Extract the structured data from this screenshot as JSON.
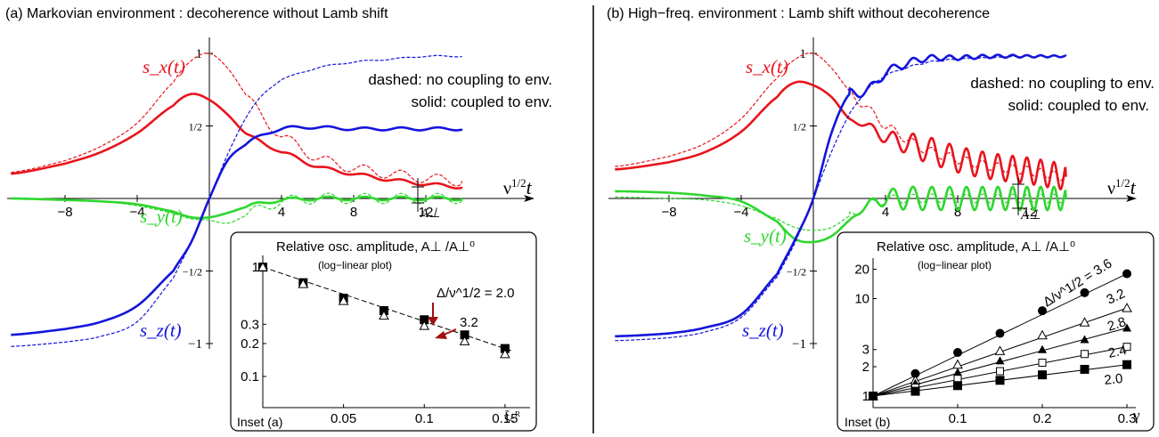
{
  "colors": {
    "sx": "#e8141c",
    "sy": "#2fd62f",
    "sz": "#1414dc",
    "arrow": "#a01010",
    "axis": "#000000"
  },
  "chart_data": [
    {
      "id": "a",
      "type": "line",
      "title": "(a) Markovian environment : decoherence without Lamb shift",
      "xlabel": "ν^1/2 t",
      "xticks": [
        -8,
        -4,
        4,
        8,
        12
      ],
      "yticks": [
        "1",
        "1/2",
        "−1/2",
        "−1"
      ],
      "xlim": [
        -11,
        14.5
      ],
      "ylim": [
        -1.1,
        1.05
      ],
      "legend_dashed": "dashed: no coupling to env.",
      "legend_solid": "solid: coupled to env.",
      "amplitude_label": "A⊥",
      "series": [
        {
          "name": "s_x(t)",
          "color": "#e8141c",
          "style": "solid",
          "x": [
            -11,
            -8,
            -6,
            -4,
            -2,
            -1,
            0,
            1,
            2,
            3,
            4,
            6,
            8,
            10,
            12,
            14
          ],
          "y": [
            0.17,
            0.24,
            0.32,
            0.45,
            0.64,
            0.72,
            0.68,
            0.58,
            0.45,
            0.38,
            0.32,
            0.22,
            0.17,
            0.13,
            0.1,
            0.08
          ]
        },
        {
          "name": "s_x(t)",
          "color": "#e8141c",
          "style": "dashed",
          "x": [
            -11,
            -8,
            -6,
            -4,
            -2,
            -1,
            0,
            1,
            2,
            3,
            4,
            6,
            8,
            10,
            12,
            14
          ],
          "y": [
            0.18,
            0.26,
            0.36,
            0.52,
            0.8,
            0.95,
            1.0,
            0.9,
            0.72,
            0.55,
            0.43,
            0.28,
            0.21,
            0.17,
            0.14,
            0.12
          ]
        },
        {
          "name": "s_y(t)",
          "color": "#2fd62f",
          "style": "solid",
          "x": [
            -11,
            -8,
            -6,
            -4,
            -2,
            -1,
            0,
            1,
            2,
            3,
            4,
            6,
            8,
            10,
            12,
            14
          ],
          "y": [
            0,
            -0.01,
            -0.02,
            -0.04,
            -0.09,
            -0.13,
            -0.13,
            -0.1,
            -0.06,
            -0.03,
            -0.01,
            0,
            0,
            0,
            0,
            0
          ]
        },
        {
          "name": "s_y(t)",
          "color": "#2fd62f",
          "style": "dashed",
          "x": [
            -11,
            -8,
            -6,
            -4,
            -2,
            -1,
            0,
            1,
            2,
            3,
            4,
            6,
            8,
            10,
            12,
            14
          ],
          "y": [
            0,
            -0.01,
            -0.02,
            -0.05,
            -0.1,
            -0.14,
            -0.15,
            -0.17,
            -0.12,
            -0.06,
            -0.02,
            0,
            0,
            0,
            0,
            0
          ]
        },
        {
          "name": "s_z(t)",
          "color": "#1414dc",
          "style": "solid",
          "x": [
            -11,
            -8,
            -6,
            -4,
            -2,
            -1,
            0,
            1,
            2,
            3,
            4,
            5,
            6,
            8,
            10,
            12,
            14
          ],
          "y": [
            -0.94,
            -0.9,
            -0.85,
            -0.74,
            -0.5,
            -0.3,
            0,
            0.26,
            0.37,
            0.44,
            0.48,
            0.49,
            0.49,
            0.48,
            0.48,
            0.48,
            0.48
          ]
        },
        {
          "name": "s_z(t)",
          "color": "#1414dc",
          "style": "dashed",
          "x": [
            -11,
            -8,
            -6,
            -4,
            -2,
            -1,
            0,
            1,
            2,
            3,
            4,
            6,
            8,
            10,
            12,
            14
          ],
          "y": [
            -1.02,
            -0.99,
            -0.95,
            -0.85,
            -0.55,
            -0.3,
            0,
            0.3,
            0.55,
            0.72,
            0.82,
            0.9,
            0.94,
            0.96,
            0.98,
            0.98
          ]
        }
      ],
      "inset": {
        "title": "Relative osc. amplitude, A⊥ /A⊥⁰",
        "subtitle": "(log−linear plot)",
        "label": "Inset (a)",
        "xlabel": "ξ꜀ᴿ",
        "scale_y": "log",
        "xlim": [
          0,
          0.16
        ],
        "ylim": [
          0.07,
          1.1
        ],
        "xticks": [
          "0.05",
          "0.1",
          "0.15"
        ],
        "yticks": [
          "1",
          "0.3",
          "0.2",
          "0.1"
        ],
        "annotations": [
          "Δ/ν^1/2 = 2.0",
          "3.2"
        ],
        "series": [
          {
            "name": "2.0",
            "marker": "square-filled",
            "x": [
              0,
              0.025,
              0.05,
              0.075,
              0.1,
              0.125,
              0.15
            ],
            "y": [
              1.0,
              0.72,
              0.52,
              0.4,
              0.33,
              0.24,
              0.18
            ]
          },
          {
            "name": "3.2",
            "marker": "triangle-open",
            "x": [
              0,
              0.025,
              0.05,
              0.075,
              0.1,
              0.125,
              0.15
            ],
            "y": [
              1.0,
              0.7,
              0.49,
              0.36,
              0.29,
              0.21,
              0.16
            ]
          }
        ]
      }
    },
    {
      "id": "b",
      "type": "line",
      "title": "(b) High−freq. environment : Lamb shift without decoherence",
      "xlabel": "ν^1/2 t",
      "xticks": [
        -8,
        -4,
        4,
        8,
        12
      ],
      "yticks": [
        "1",
        "1/2",
        "−1/2",
        "−1"
      ],
      "xlim": [
        -11,
        14.5
      ],
      "ylim": [
        -1.1,
        1.05
      ],
      "legend_dashed": "dashed: no coupling to env.",
      "legend_solid": "solid: coupled to env.",
      "amplitude_label": "A⊥",
      "series": [
        {
          "name": "s_x(t)",
          "color": "#e8141c",
          "style": "solid",
          "x": [
            -11,
            -8,
            -6,
            -4,
            -2,
            -1,
            0,
            1,
            2,
            3,
            4,
            6,
            8,
            10,
            12,
            14
          ],
          "y": [
            0.2,
            0.25,
            0.32,
            0.46,
            0.7,
            0.8,
            0.78,
            0.7,
            0.55,
            0.5,
            0.42,
            0.35,
            0.27,
            0.22,
            0.19,
            0.15
          ]
        },
        {
          "name": "s_x(t)",
          "color": "#e8141c",
          "style": "dashed",
          "x": [
            -11,
            -8,
            -6,
            -4,
            -2,
            -1,
            0,
            1,
            2,
            3,
            4,
            6,
            8,
            10,
            12,
            14
          ],
          "y": [
            0.22,
            0.29,
            0.38,
            0.55,
            0.83,
            0.96,
            1.0,
            0.9,
            0.74,
            0.62,
            0.5,
            0.35,
            0.27,
            0.22,
            0.19,
            0.15
          ]
        },
        {
          "name": "s_y(t)",
          "color": "#2fd62f",
          "style": "solid",
          "x": [
            -11,
            -8,
            -6,
            -4,
            -2,
            -1,
            0,
            1,
            2,
            3,
            4,
            6,
            8,
            10,
            12,
            14
          ],
          "y": [
            0.05,
            0.04,
            0.02,
            -0.02,
            -0.16,
            -0.28,
            -0.3,
            -0.26,
            -0.15,
            -0.05,
            0,
            0,
            0,
            0,
            0,
            0
          ]
        },
        {
          "name": "s_y(t)",
          "color": "#2fd62f",
          "style": "dashed",
          "x": [
            -11,
            -8,
            -6,
            -4,
            -2,
            -1,
            0,
            1,
            2,
            3,
            4,
            6,
            8,
            10,
            12,
            14
          ],
          "y": [
            0.01,
            0.0,
            -0.01,
            -0.05,
            -0.14,
            -0.2,
            -0.22,
            -0.2,
            -0.12,
            -0.05,
            -0.01,
            0,
            0,
            0,
            0,
            0
          ]
        },
        {
          "name": "s_z(t)",
          "color": "#1414dc",
          "style": "solid",
          "x": [
            -11,
            -8,
            -6,
            -4,
            -2,
            -1,
            0,
            1,
            2,
            3,
            4,
            6,
            8,
            10,
            12,
            14
          ],
          "y": [
            -0.95,
            -0.93,
            -0.89,
            -0.8,
            -0.52,
            -0.28,
            0,
            0.45,
            0.72,
            0.74,
            0.87,
            0.96,
            0.97,
            0.98,
            0.98,
            0.98
          ]
        },
        {
          "name": "s_z(t)",
          "color": "#1414dc",
          "style": "dashed",
          "x": [
            -11,
            -8,
            -6,
            -4,
            -2,
            -1,
            0,
            1,
            2,
            3,
            4,
            6,
            8,
            10,
            12,
            14
          ],
          "y": [
            -0.98,
            -0.96,
            -0.92,
            -0.82,
            -0.54,
            -0.3,
            0,
            0.32,
            0.58,
            0.75,
            0.85,
            0.93,
            0.96,
            0.97,
            0.98,
            0.98
          ]
        }
      ],
      "inset": {
        "title": "Relative osc. amplitude, A⊥ /A⊥⁰",
        "subtitle": "(log−linear plot)",
        "label": "Inset (b)",
        "xlabel": "γ",
        "scale_y": "log",
        "xlim": [
          0,
          0.3
        ],
        "ylim": [
          0.9,
          22
        ],
        "xticks": [
          "0.1",
          "0.2",
          "0.3"
        ],
        "yticks": [
          "1",
          "2",
          "3",
          "10",
          "20"
        ],
        "annotations": [
          "Δ/ν^1/2 = 3.6",
          "3.2",
          "2.8",
          "2.4",
          "2.0"
        ],
        "series": [
          {
            "name": "3.6",
            "marker": "circle-filled",
            "x": [
              0,
              0.05,
              0.1,
              0.15,
              0.2,
              0.25,
              0.3
            ],
            "y": [
              1.0,
              1.7,
              2.8,
              4.4,
              7.5,
              11.5,
              18.0
            ]
          },
          {
            "name": "3.2",
            "marker": "triangle-open",
            "x": [
              0,
              0.05,
              0.1,
              0.15,
              0.2,
              0.25,
              0.3
            ],
            "y": [
              1.0,
              1.45,
              2.1,
              2.9,
              4.2,
              5.7,
              8.0
            ]
          },
          {
            "name": "2.8",
            "marker": "triangle-filled",
            "x": [
              0,
              0.05,
              0.1,
              0.15,
              0.2,
              0.25,
              0.3
            ],
            "y": [
              1.0,
              1.35,
              1.75,
              2.3,
              3.0,
              3.8,
              5.0
            ]
          },
          {
            "name": "2.4",
            "marker": "square-open",
            "x": [
              0,
              0.05,
              0.1,
              0.15,
              0.2,
              0.25,
              0.3
            ],
            "y": [
              1.0,
              1.22,
              1.5,
              1.8,
              2.2,
              2.7,
              3.2
            ]
          },
          {
            "name": "2.0",
            "marker": "square-filled",
            "x": [
              0,
              0.05,
              0.1,
              0.15,
              0.2,
              0.25,
              0.3
            ],
            "y": [
              1.0,
              1.12,
              1.28,
              1.45,
              1.65,
              1.88,
              2.1
            ]
          }
        ]
      }
    }
  ]
}
